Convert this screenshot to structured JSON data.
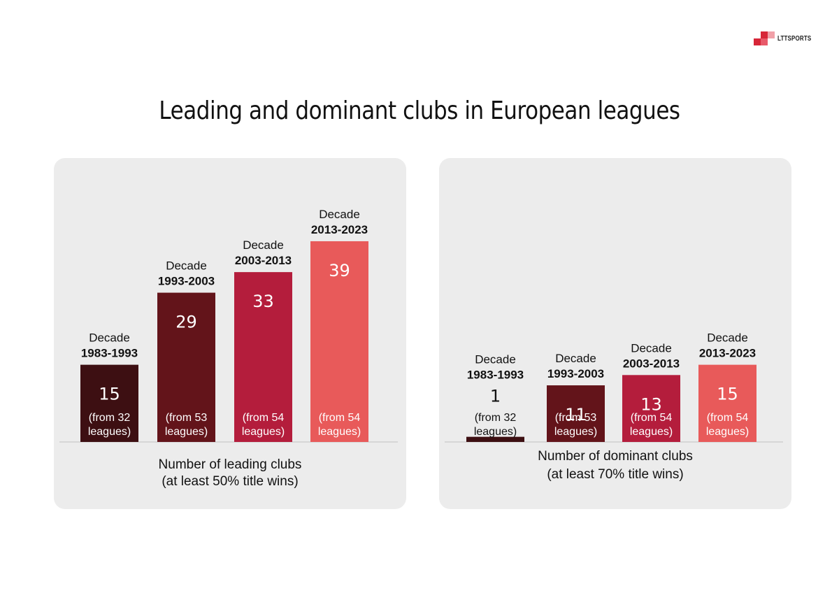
{
  "brand": {
    "name": "LTTSPORTS",
    "color": "#d72638"
  },
  "title": "Leading and dominant clubs in European leagues",
  "colors": {
    "panel_bg": "#ececec",
    "bar_1983": "#3d0f12",
    "bar_1993": "#63141a",
    "bar_2003": "#b41d3c",
    "bar_2013": "#e85a5a",
    "baseline": "#cfcfcf"
  },
  "chart_data": [
    {
      "type": "bar",
      "title": "",
      "xlabel": [
        "Number of leading clubs",
        "(at least 50% title wins)"
      ],
      "ylabel": "",
      "ylim": [
        0,
        45
      ],
      "grid": false,
      "categories": [
        {
          "word": "Decade",
          "years": "1983-1993"
        },
        {
          "word": "Decade",
          "years": "1993-2003"
        },
        {
          "word": "Decade",
          "years": "2003-2013"
        },
        {
          "word": "Decade",
          "years": "2013-2023"
        }
      ],
      "values": [
        15,
        29,
        33,
        39
      ],
      "value_labels": [
        "15",
        "29",
        "33",
        "39"
      ],
      "notes": [
        [
          "(from 32",
          "leagues)"
        ],
        [
          "(from 53",
          "leagues)"
        ],
        [
          "(from 54",
          "leagues)"
        ],
        [
          "(from 54",
          "leagues)"
        ]
      ]
    },
    {
      "type": "bar",
      "title": "",
      "xlabel": [
        "Number of dominant clubs",
        "(at least 70% title wins)"
      ],
      "ylabel": "",
      "ylim": [
        0,
        45
      ],
      "grid": false,
      "categories": [
        {
          "word": "Decade",
          "years": "1983-1993"
        },
        {
          "word": "Decade",
          "years": "1993-2003"
        },
        {
          "word": "Decade",
          "years": "2003-2013"
        },
        {
          "word": "Decade",
          "years": "2013-2023"
        }
      ],
      "values": [
        1,
        11,
        13,
        15
      ],
      "value_labels": [
        "1",
        "11",
        "13",
        "15"
      ],
      "notes": [
        [
          "(from 32",
          "leagues)"
        ],
        [
          "(from 53",
          "leagues)"
        ],
        [
          "(from 54",
          "leagues)"
        ],
        [
          "(from 54",
          "leagues)"
        ]
      ]
    }
  ]
}
